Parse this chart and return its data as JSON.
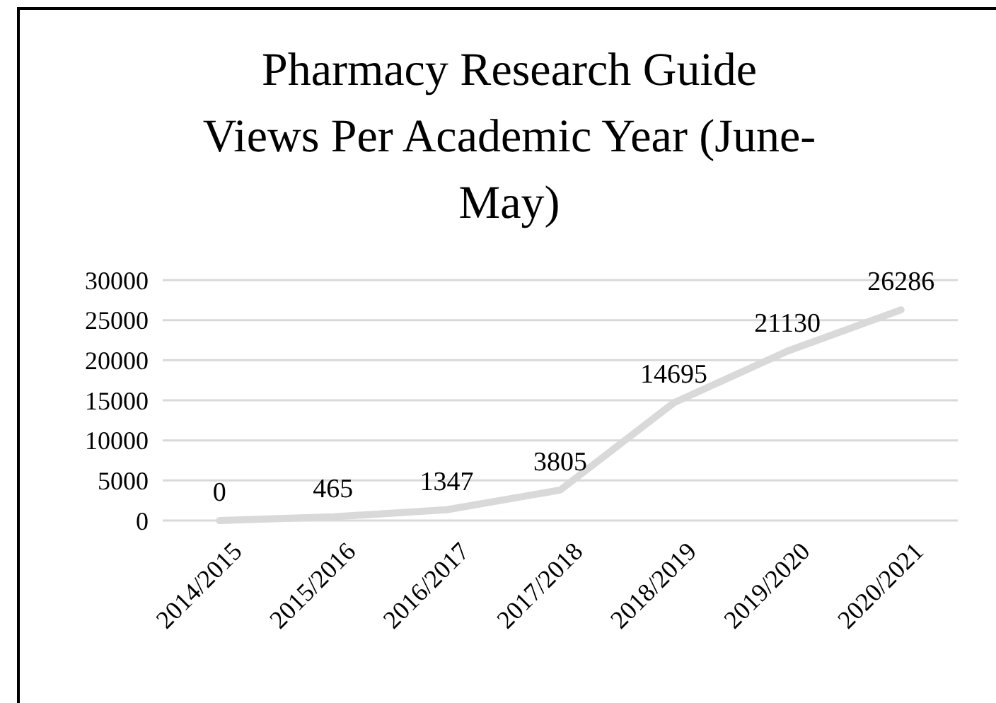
{
  "chart_data": {
    "type": "line",
    "title": "Pharmacy Research Guide\nViews Per Academic Year (June-May)",
    "categories": [
      "2014/2015",
      "2015/2016",
      "2016/2017",
      "2017/2018",
      "2018/2019",
      "2019/2020",
      "2020/2021"
    ],
    "series": [
      {
        "color": "#d9d9d9",
        "values": [
          0,
          465,
          1347,
          3805,
          14695,
          21130,
          26286
        ]
      }
    ],
    "ylim": [
      0,
      30000
    ],
    "yticks": [
      0,
      5000,
      10000,
      15000,
      20000,
      25000,
      30000
    ],
    "grid": "y",
    "data_labels": true,
    "marker": "none",
    "line_style": "solid"
  }
}
